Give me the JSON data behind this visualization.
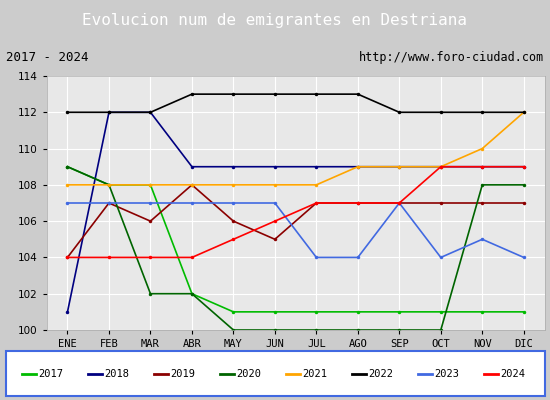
{
  "title": "Evolucion num de emigrantes en Destriana",
  "subtitle_left": "2017 - 2024",
  "subtitle_right": "http://www.foro-ciudad.com",
  "months": [
    "ENE",
    "FEB",
    "MAR",
    "ABR",
    "MAY",
    "JUN",
    "JUL",
    "AGO",
    "SEP",
    "OCT",
    "NOV",
    "DIC"
  ],
  "ylim": [
    100,
    114
  ],
  "yticks": [
    100,
    102,
    104,
    106,
    108,
    110,
    112,
    114
  ],
  "series": {
    "2017": {
      "color": "#00bb00",
      "data": [
        109,
        108,
        108,
        102,
        101,
        101,
        101,
        101,
        101,
        101,
        101,
        101
      ]
    },
    "2018": {
      "color": "#000080",
      "data": [
        101,
        112,
        112,
        109,
        109,
        109,
        109,
        109,
        109,
        109,
        109,
        109
      ]
    },
    "2019": {
      "color": "#8B0000",
      "data": [
        104,
        107,
        106,
        108,
        106,
        105,
        107,
        107,
        107,
        107,
        107,
        107
      ]
    },
    "2020": {
      "color": "#006400",
      "data": [
        109,
        108,
        102,
        102,
        100,
        100,
        100,
        100,
        100,
        100,
        108,
        108
      ]
    },
    "2021": {
      "color": "#FFA500",
      "data": [
        108,
        108,
        108,
        108,
        108,
        108,
        108,
        109,
        109,
        109,
        110,
        112
      ]
    },
    "2022": {
      "color": "#000000",
      "data": [
        112,
        112,
        112,
        113,
        113,
        113,
        113,
        113,
        112,
        112,
        112,
        112
      ]
    },
    "2023": {
      "color": "#4169E1",
      "data": [
        107,
        107,
        107,
        107,
        107,
        107,
        104,
        104,
        107,
        104,
        105,
        104
      ]
    },
    "2024": {
      "color": "#FF0000",
      "data": [
        104,
        104,
        104,
        104,
        105,
        106,
        107,
        107,
        107,
        109,
        109,
        109
      ]
    }
  },
  "title_bg": "#4472c4",
  "title_color": "#ffffff",
  "subtitle_bg": "#cccccc",
  "plot_bg": "#e8e8e8",
  "grid_color": "#ffffff",
  "legend_border_color": "#4169E1"
}
